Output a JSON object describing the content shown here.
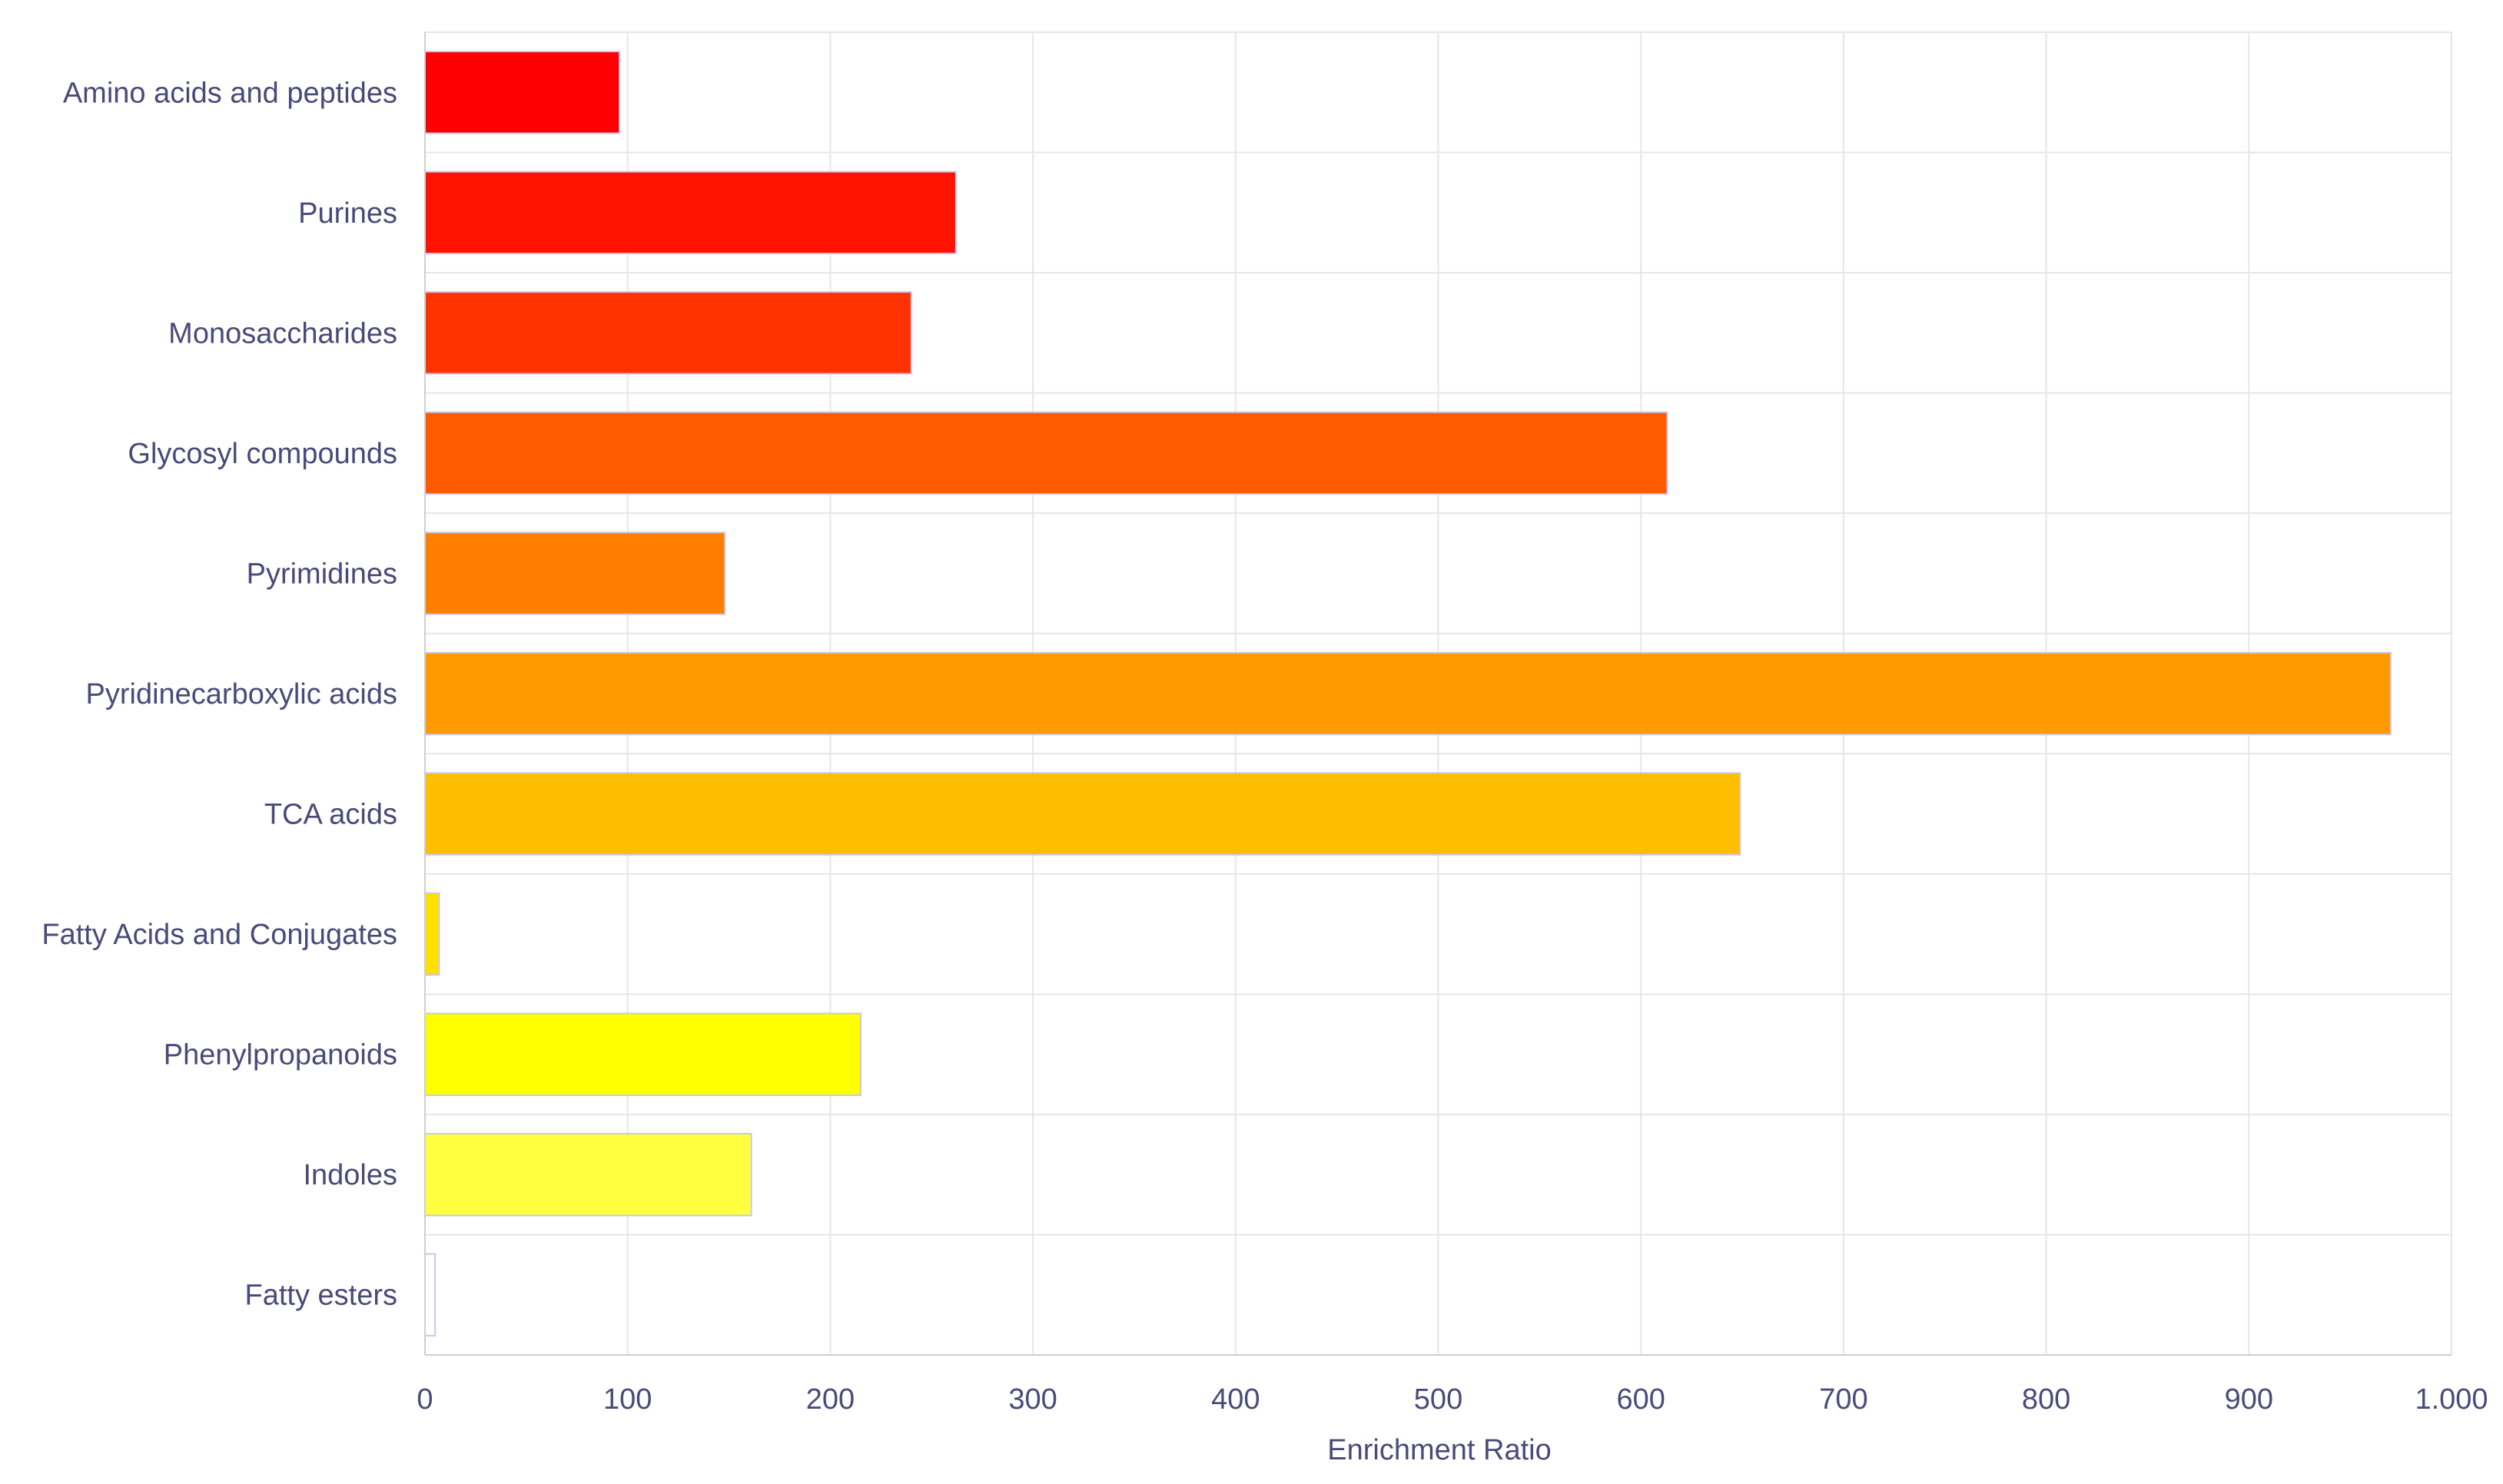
{
  "colors": {
    "text": "#4a4a7a",
    "grid": "#e6e6e6",
    "axis": "#cfcfcf",
    "bar_edge": "#c8c8e8"
  },
  "chart_data": {
    "type": "bar",
    "orientation": "horizontal",
    "title": "",
    "xlabel": "Enrichment Ratio",
    "ylabel": "",
    "xlim": [
      0,
      1000
    ],
    "x_ticks": [
      0,
      100,
      200,
      300,
      400,
      500,
      600,
      700,
      800,
      900,
      1000
    ],
    "x_tick_labels": [
      "0",
      "100",
      "200",
      "300",
      "400",
      "500",
      "600",
      "700",
      "800",
      "900",
      "1.000"
    ],
    "grid": true,
    "legend": "none",
    "categories": [
      "Amino acids and peptides",
      "Purines",
      "Monosaccharides",
      "Glycosyl compounds",
      "Pyrimidines",
      "Pyridinecarboxylic acids",
      "TCA acids",
      "Fatty Acids and Conjugates",
      "Phenylpropanoids",
      "Indoles",
      "Fatty esters"
    ],
    "values": [
      96,
      262,
      240,
      613,
      148,
      970,
      649,
      7,
      215,
      161,
      5
    ],
    "bar_colors": [
      "#ff0000",
      "#ff1200",
      "#ff3300",
      "#ff5a00",
      "#ff8000",
      "#ff9a00",
      "#ffbf00",
      "#ffe000",
      "#ffff00",
      "#ffff40",
      "#ffffff"
    ]
  }
}
